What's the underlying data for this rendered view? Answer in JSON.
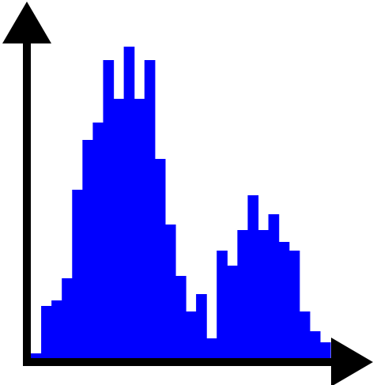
{
  "chart_data": {
    "type": "bar",
    "title": "",
    "xlabel": "",
    "ylabel": "",
    "x_tick_labels": [],
    "y_tick_labels": [],
    "legend": [],
    "grid": false,
    "bar_style": "adjacent-step-histogram",
    "bar_color": "#0000ff",
    "axis_color": "#000000",
    "ylim": [
      0,
      400
    ],
    "values": [
      6,
      66,
      73,
      101,
      213,
      276,
      298,
      377,
      328,
      394,
      328,
      377,
      252,
      169,
      104,
      59,
      81,
      25,
      136,
      117,
      162,
      206,
      162,
      182,
      147,
      136,
      59,
      34,
      20
    ]
  }
}
